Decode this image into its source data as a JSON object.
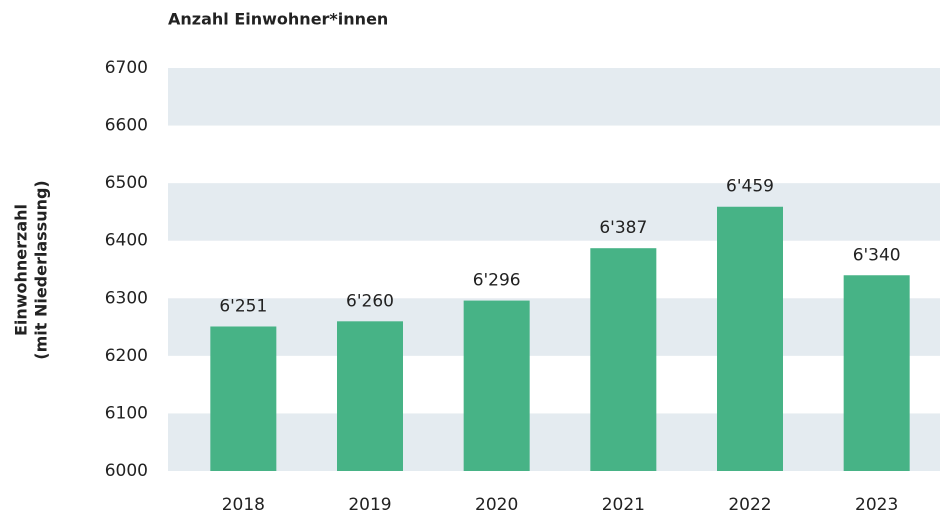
{
  "chart_data": {
    "type": "bar",
    "title": "Anzahl Einwohner*innen",
    "ylabel": [
      "Einwohnerzahl",
      "(mit Niederlassung)"
    ],
    "categories": [
      "2018",
      "2019",
      "2020",
      "2021",
      "2022",
      "2023"
    ],
    "values": [
      6251,
      6260,
      6296,
      6387,
      6459,
      6340
    ],
    "value_labels": [
      "6'251",
      "6'260",
      "6'296",
      "6'387",
      "6'459",
      "6'340"
    ],
    "color": "#47b386",
    "ylim": [
      6000,
      6700
    ],
    "yticks": [
      6000,
      6100,
      6200,
      6300,
      6400,
      6500,
      6600,
      6700
    ],
    "grid": "bands",
    "grid_color": "#e4ebf0"
  }
}
